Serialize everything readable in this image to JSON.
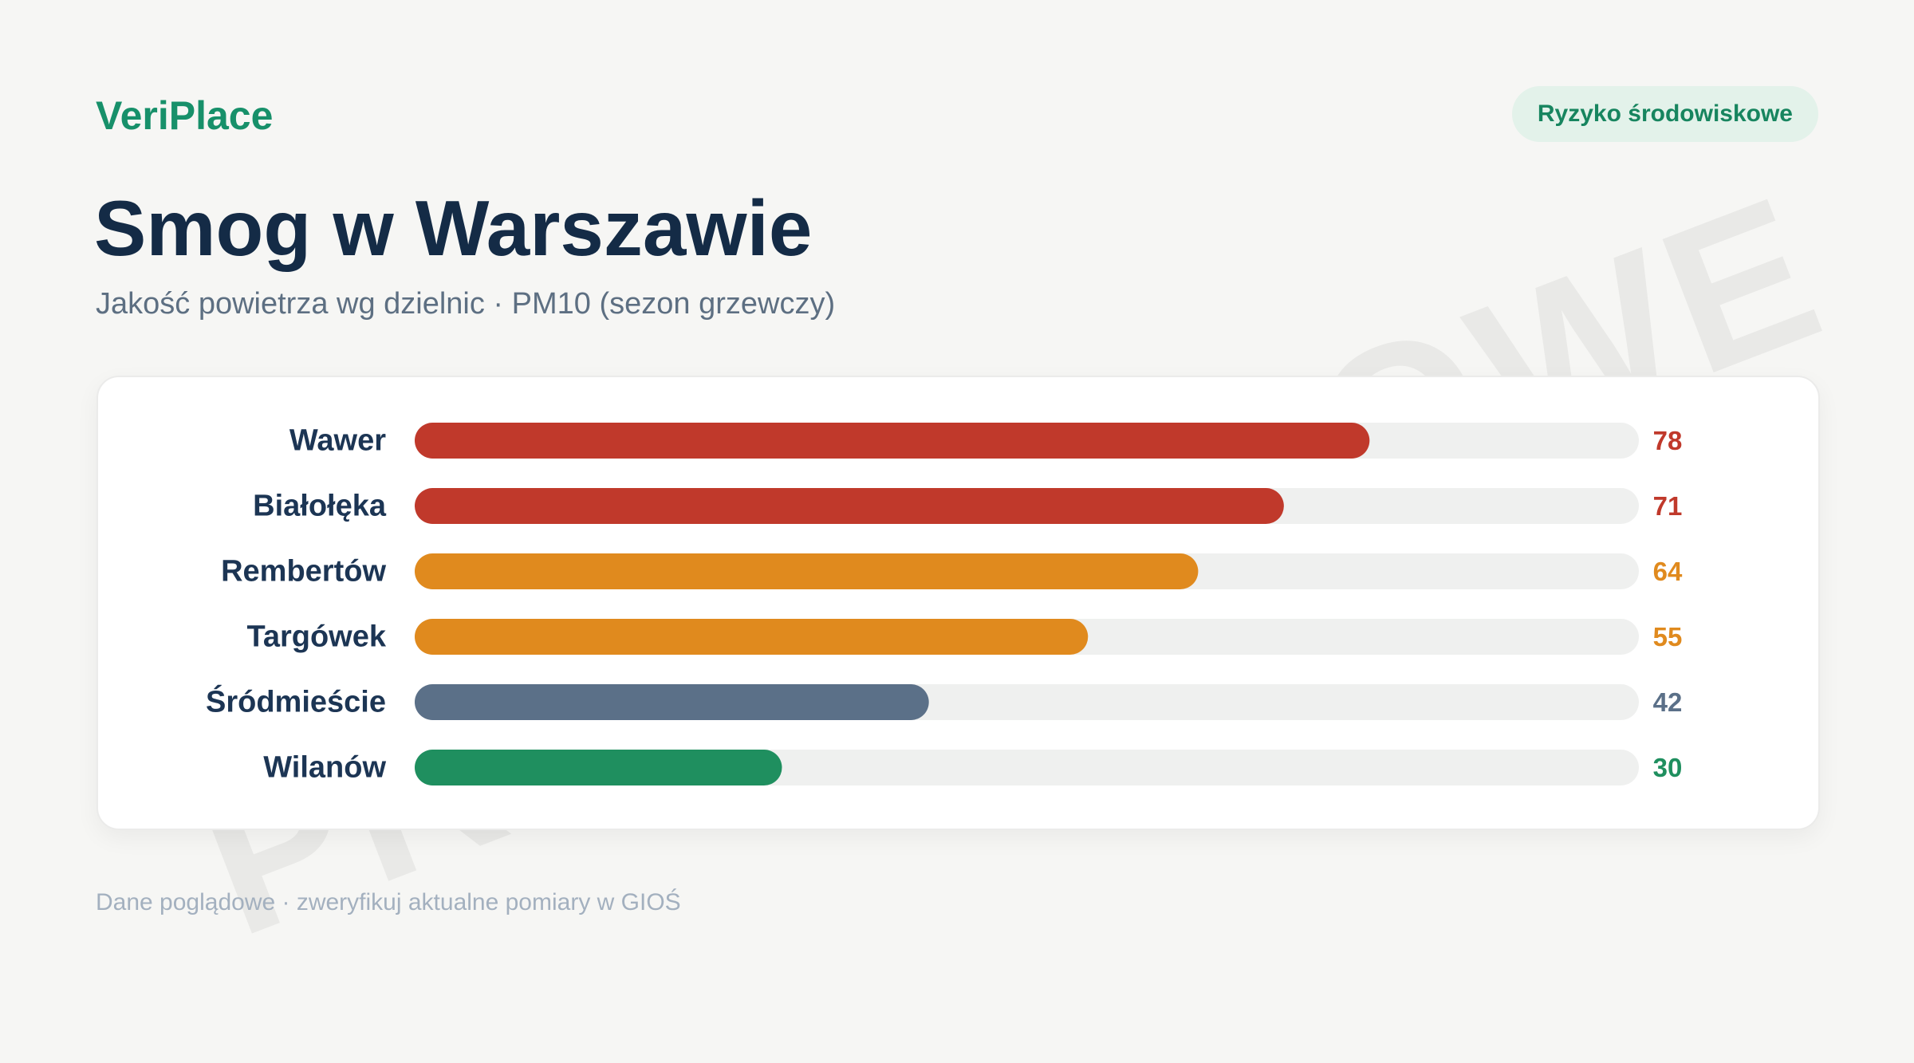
{
  "brand": "VeriPlace",
  "badge": "Ryzyko środowiskowe",
  "title": "Smog w Warszawie",
  "subtitle": "Jakość powietrza wg dzielnic · PM10 (sezon grzewczy)",
  "watermark": "PRZYKŁADOWE",
  "footer": "Dane poglądowe · zweryfikuj aktualne pomiary w GIOŚ",
  "colors": {
    "brand": "#17906a",
    "high": "#c0392b",
    "medium": "#e08a1e",
    "neutral": "#5b7088",
    "low": "#1f8f5f",
    "track": "#eff0ef"
  },
  "chart_data": {
    "type": "bar",
    "orientation": "horizontal",
    "categories": [
      "Wawer",
      "Białołęka",
      "Rembertów",
      "Targówek",
      "Śródmieście",
      "Wilanów"
    ],
    "values": [
      78,
      71,
      64,
      55,
      42,
      30
    ],
    "value_labels": [
      "78",
      "71",
      "64",
      "55",
      "42",
      "30"
    ],
    "levels": [
      "high",
      "high",
      "medium",
      "medium",
      "neutral",
      "low"
    ],
    "xlim": [
      0,
      100
    ],
    "grid": false,
    "legend": "none"
  }
}
